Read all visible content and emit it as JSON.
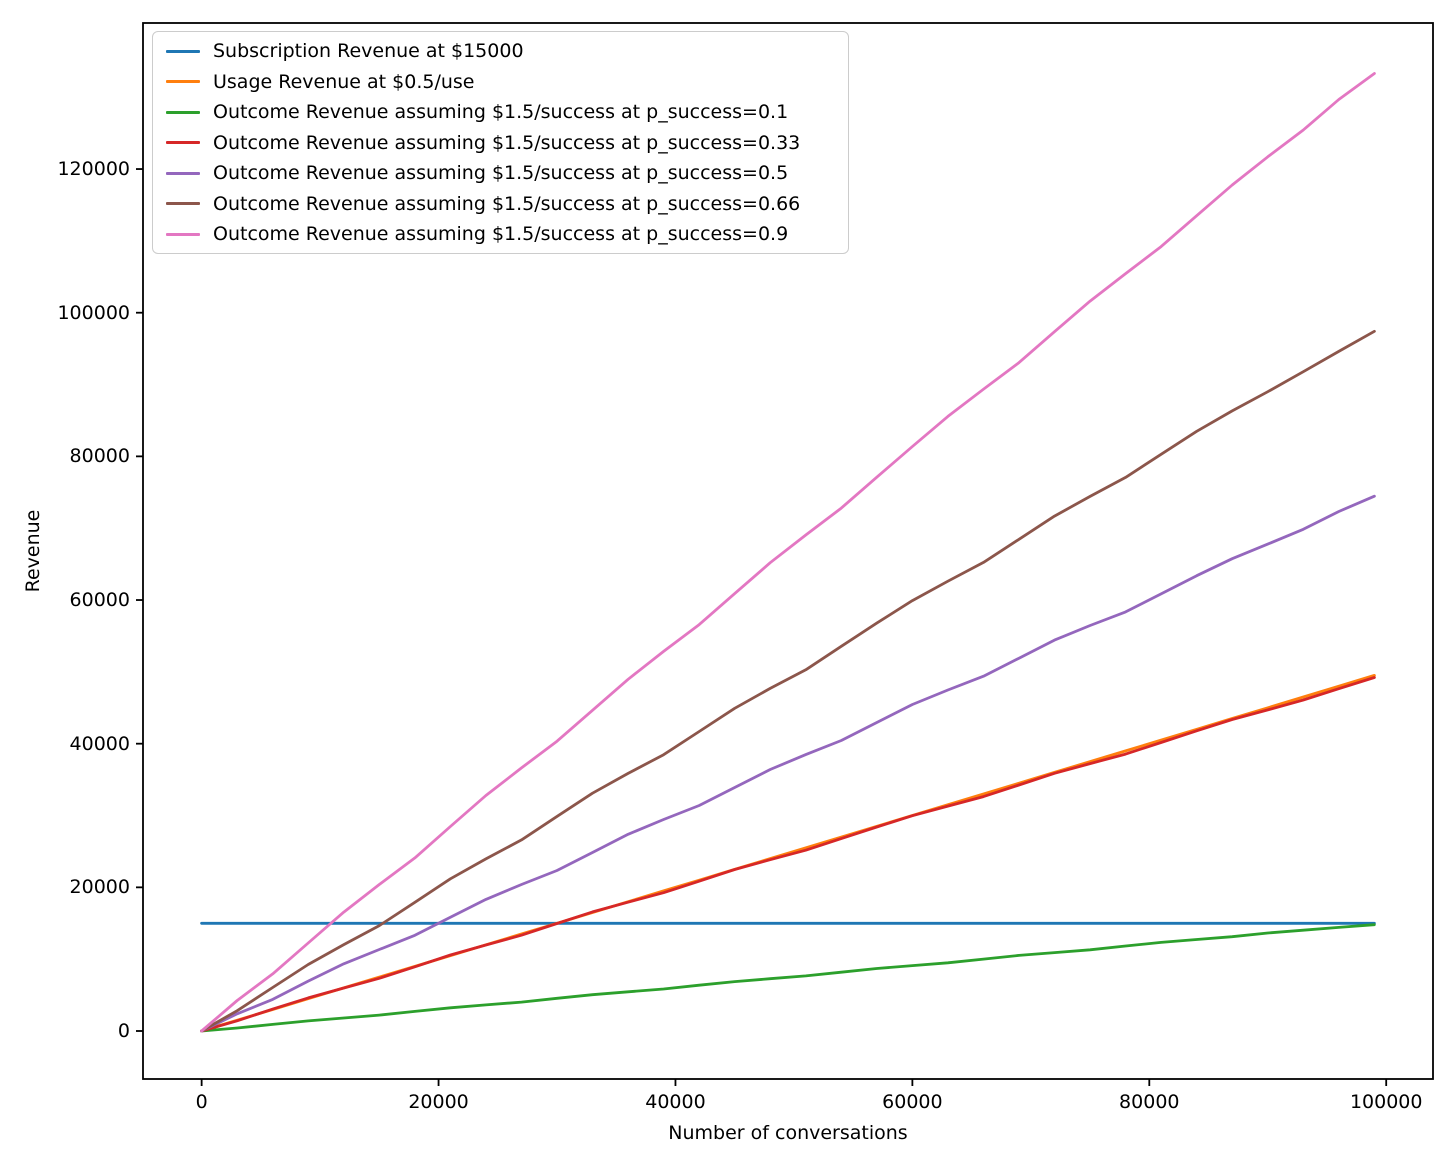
{
  "chart_data": {
    "type": "line",
    "title": "",
    "xlabel": "Number of conversations",
    "ylabel": "Revenue",
    "grid": false,
    "legend_position": "upper-left",
    "xlim": [
      -4950,
      103950
    ],
    "ylim": [
      -6682,
      140332
    ],
    "x_ticks": [
      0,
      20000,
      40000,
      60000,
      80000,
      100000
    ],
    "y_ticks": [
      0,
      20000,
      40000,
      60000,
      80000,
      100000,
      120000
    ],
    "axis_color": "#000000",
    "x": [
      0,
      3000,
      6000,
      9000,
      12000,
      15000,
      18000,
      21000,
      24000,
      27000,
      30000,
      33000,
      36000,
      39000,
      42000,
      45000,
      48000,
      51000,
      54000,
      57000,
      60000,
      63000,
      66000,
      69000,
      72000,
      75000,
      78000,
      81000,
      84000,
      87000,
      90000,
      93000,
      96000,
      99000
    ],
    "series": [
      {
        "name": "Subscription Revenue at $15000",
        "color": "#1f77b4",
        "x": [
          0,
          99000
        ],
        "values": [
          15000,
          15000
        ]
      },
      {
        "name": "Usage Revenue at $0.5/use",
        "color": "#ff7f0e",
        "values": [
          0,
          1500,
          3000,
          4500,
          6000,
          7500,
          9000,
          10500,
          12000,
          13500,
          15000,
          16500,
          18000,
          19500,
          21000,
          22500,
          24000,
          25500,
          27000,
          28500,
          30000,
          31500,
          33000,
          34500,
          36000,
          37500,
          39000,
          40500,
          42000,
          43500,
          45000,
          46500,
          48000,
          49500
        ]
      },
      {
        "name": "Outcome Revenue assuming $1.5/success at p_success=0.1",
        "color": "#2ca02c",
        "values": [
          0,
          420,
          920,
          1410,
          1810,
          2210,
          2730,
          3230,
          3640,
          4030,
          4550,
          5060,
          5460,
          5850,
          6370,
          6880,
          7280,
          7670,
          8190,
          8700,
          9100,
          9490,
          10010,
          10520,
          10920,
          11310,
          11830,
          12340,
          12740,
          13130,
          13650,
          14040,
          14430,
          14800
        ]
      },
      {
        "name": "Outcome Revenue assuming $1.5/success at p_success=0.33",
        "color": "#d62728",
        "values": [
          0,
          1425,
          3050,
          4605,
          5980,
          7335,
          8940,
          10575,
          11970,
          13335,
          14970,
          16575,
          17930,
          19255,
          20860,
          22485,
          23850,
          25175,
          26780,
          28405,
          29970,
          31305,
          32630,
          34245,
          35870,
          37225,
          38550,
          40165,
          41790,
          43365,
          44700,
          46075,
          47650,
          49215
        ]
      },
      {
        "name": "Outcome Revenue assuming $1.5/success at p_success=0.5",
        "color": "#9467bd",
        "values": [
          0,
          2400,
          4400,
          6950,
          9350,
          11350,
          13320,
          15850,
          18320,
          20400,
          22350,
          24850,
          27380,
          29450,
          31400,
          33900,
          36400,
          38480,
          40450,
          42950,
          45450,
          47480,
          49400,
          51900,
          54420,
          56450,
          58350,
          60850,
          63380,
          65750,
          67780,
          69850,
          72320,
          74450
        ]
      },
      {
        "name": "Outcome Revenue assuming $1.5/success at p_success=0.66",
        "color": "#8c564b",
        "values": [
          0,
          2820,
          6060,
          9260,
          12030,
          14670,
          17920,
          21190,
          23960,
          26610,
          29880,
          33100,
          35860,
          38460,
          41700,
          44930,
          47700,
          50290,
          53560,
          56790,
          59920,
          62620,
          65240,
          68460,
          71680,
          74430,
          77070,
          80290,
          83490,
          86330,
          89000,
          91790,
          94610,
          97410
        ]
      },
      {
        "name": "Outcome Revenue assuming $1.5/success at p_success=0.9",
        "color": "#e377c2",
        "values": [
          0,
          4250,
          7950,
          12250,
          16550,
          20400,
          24100,
          28470,
          32780,
          36630,
          40350,
          44650,
          48960,
          52850,
          56580,
          60900,
          65200,
          69050,
          72800,
          77100,
          81380,
          85570,
          89350,
          93050,
          97350,
          101610,
          105450,
          109200,
          113500,
          117780,
          121700,
          125430,
          129680,
          133300
        ]
      }
    ]
  }
}
